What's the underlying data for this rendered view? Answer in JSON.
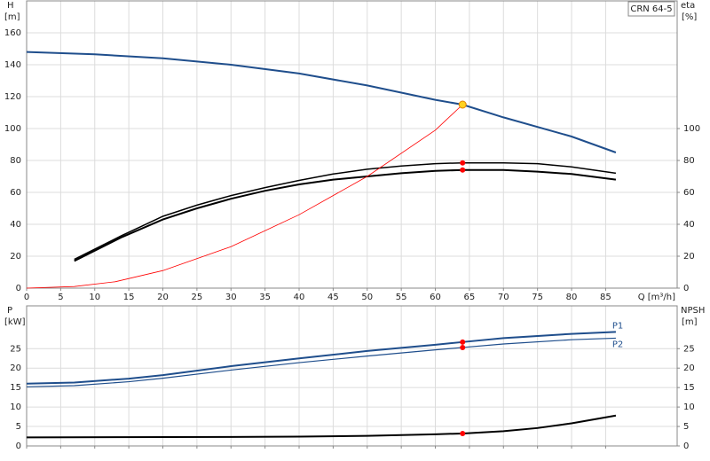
{
  "chart_data": [
    {
      "type": "line",
      "title": "CRN 64-5",
      "x_label": "Q [m³/h]",
      "y_label": "H",
      "y_unit": "[m]",
      "y2_label": "eta",
      "y2_unit": "[%]",
      "xlim": [
        0,
        95.5
      ],
      "xticks": [
        0,
        5,
        10,
        15,
        20,
        25,
        30,
        35,
        40,
        45,
        50,
        55,
        60,
        65,
        70,
        75,
        80,
        85
      ],
      "ylim": [
        0,
        180
      ],
      "yticks": [
        0,
        20,
        40,
        60,
        80,
        100,
        120,
        140,
        160
      ],
      "y2lim": [
        0,
        180
      ],
      "y2ticks": [
        0,
        20,
        40,
        60,
        80,
        100
      ],
      "grid": true,
      "series": [
        {
          "color": "#1f4e8c",
          "width": 2,
          "x": [
            0,
            10,
            20,
            30,
            40,
            50,
            60,
            64,
            70,
            80,
            86.5
          ],
          "values": [
            148,
            146.5,
            144,
            140,
            134.5,
            127,
            118,
            115,
            107,
            95,
            85
          ]
        },
        {
          "color": "#000000",
          "width": 2,
          "axis": "y2",
          "x": [
            7,
            14,
            20,
            25,
            30,
            35,
            40,
            45,
            50,
            55,
            60,
            64,
            70,
            75,
            80,
            86.5
          ],
          "values": [
            17,
            32,
            43,
            50,
            56,
            61,
            65,
            68,
            70,
            72,
            73.5,
            74,
            74,
            73,
            71.5,
            68
          ]
        },
        {
          "color": "#000000",
          "width": 1.5,
          "axis": "y2",
          "x": [
            7,
            14,
            20,
            25,
            30,
            35,
            40,
            45,
            50,
            55,
            60,
            64,
            70,
            75,
            80,
            86.5
          ],
          "values": [
            18,
            33,
            45,
            52,
            58,
            63,
            67.5,
            71.5,
            74.5,
            76.5,
            78,
            78.5,
            78.5,
            78,
            76,
            72
          ]
        },
        {
          "color": "#ff0000",
          "width": 0.8,
          "x": [
            0,
            7,
            13,
            20,
            30,
            40,
            50,
            60,
            64
          ],
          "values": [
            0,
            1,
            4,
            11,
            26,
            46,
            70,
            99,
            115
          ]
        },
        {
          "color": "#ffd21f",
          "style": "point",
          "x": [
            64
          ],
          "values": [
            115
          ]
        },
        {
          "color": "#ff0000",
          "style": "point",
          "axis": "y2",
          "x": [
            64,
            64
          ],
          "values": [
            78.5,
            74
          ]
        }
      ]
    },
    {
      "type": "line",
      "y_label": "P",
      "y_unit": "[kW]",
      "y2_label": "NPSH",
      "y2_unit": "[m]",
      "xlim": [
        0,
        95.5
      ],
      "xticks": [
        0,
        5,
        10,
        15,
        20,
        25,
        30,
        35,
        40,
        45,
        50,
        55,
        60,
        65,
        70,
        75,
        80,
        85
      ],
      "ylim": [
        0,
        36
      ],
      "yticks": [
        0,
        5,
        10,
        15,
        20,
        25
      ],
      "y2lim": [
        0,
        36
      ],
      "y2ticks": [
        0,
        5,
        10,
        15,
        20,
        25
      ],
      "grid": true,
      "series": [
        {
          "name": "P1",
          "color": "#1f4e8c",
          "width": 2,
          "x": [
            0,
            7,
            15,
            20,
            30,
            40,
            50,
            60,
            64,
            70,
            80,
            86.5
          ],
          "values": [
            16,
            16.3,
            17.3,
            18.2,
            20.5,
            22.5,
            24.4,
            26,
            26.7,
            27.7,
            28.8,
            29.3
          ]
        },
        {
          "name": "P2",
          "color": "#1f4e8c",
          "width": 1.2,
          "x": [
            0,
            7,
            15,
            20,
            30,
            40,
            50,
            60,
            64,
            70,
            80,
            86.5
          ],
          "values": [
            15.2,
            15.5,
            16.5,
            17.4,
            19.5,
            21.4,
            23.1,
            24.7,
            25.3,
            26.2,
            27.3,
            27.7
          ]
        },
        {
          "color": "#000000",
          "width": 2,
          "axis": "y2",
          "x": [
            0,
            30,
            40,
            50,
            60,
            64,
            70,
            75,
            80,
            86.5
          ],
          "values": [
            2.2,
            2.3,
            2.4,
            2.6,
            3,
            3.2,
            3.8,
            4.6,
            5.8,
            7.8
          ]
        },
        {
          "color": "#ff0000",
          "style": "point",
          "x": [
            64,
            64
          ],
          "values": [
            26.7,
            25.3
          ]
        },
        {
          "color": "#ff0000",
          "style": "point",
          "axis": "y2",
          "x": [
            64
          ],
          "values": [
            3.2
          ]
        }
      ]
    }
  ]
}
